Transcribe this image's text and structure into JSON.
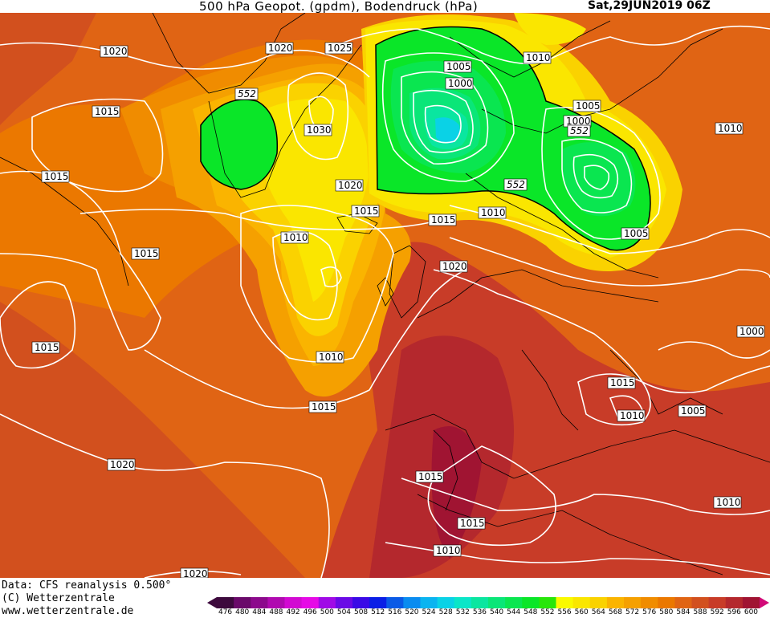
{
  "title": {
    "left": "500 hPa Geopot. (gpdm), Bodendruck (hPa)",
    "right": "Sat,29JUN2019 06Z"
  },
  "footer": {
    "line1": "Data: CFS reanalysis 0.500°",
    "line2": "(C) Wetterzentrale",
    "line3": "www.wetterzentrale.de"
  },
  "colorbar": {
    "levels": [
      "476",
      "480",
      "484",
      "488",
      "492",
      "496",
      "500",
      "504",
      "508",
      "512",
      "516",
      "520",
      "524",
      "528",
      "532",
      "536",
      "540",
      "544",
      "548",
      "552",
      "556",
      "560",
      "564",
      "568",
      "572",
      "576",
      "580",
      "584",
      "588",
      "592",
      "596",
      "600"
    ],
    "colors": [
      "#3d0a3d",
      "#6a0a6a",
      "#8c0a8c",
      "#b00ab0",
      "#d20ad2",
      "#e60ae6",
      "#a00ae6",
      "#6a0ae6",
      "#3a0ae6",
      "#0a1ee6",
      "#0a5ae6",
      "#0a8cf0",
      "#0ab4f0",
      "#0ad2e6",
      "#0ae6c8",
      "#0ae6a0",
      "#0ae678",
      "#0ae650",
      "#0ae628",
      "#28e60a",
      "#fafa00",
      "#fae600",
      "#fad200",
      "#fab400",
      "#f5a000",
      "#f08c00",
      "#eb7800",
      "#e06414",
      "#d2501e",
      "#c83c28",
      "#b4282d",
      "#a01432"
    ]
  },
  "isobars": [
    "1020",
    "1020",
    "1025",
    "552",
    "1015",
    "1030",
    "1015",
    "1020",
    "1015",
    "1005",
    "1000",
    "1010",
    "1005",
    "1000",
    "552",
    "1010",
    "552",
    "1010",
    "1015",
    "1010",
    "1005",
    "1015",
    "1020",
    "1015",
    "1010",
    "1000",
    "1015",
    "1015",
    "1010",
    "1005",
    "1020",
    "1015",
    "1015",
    "1010",
    "1010",
    "1020"
  ]
}
